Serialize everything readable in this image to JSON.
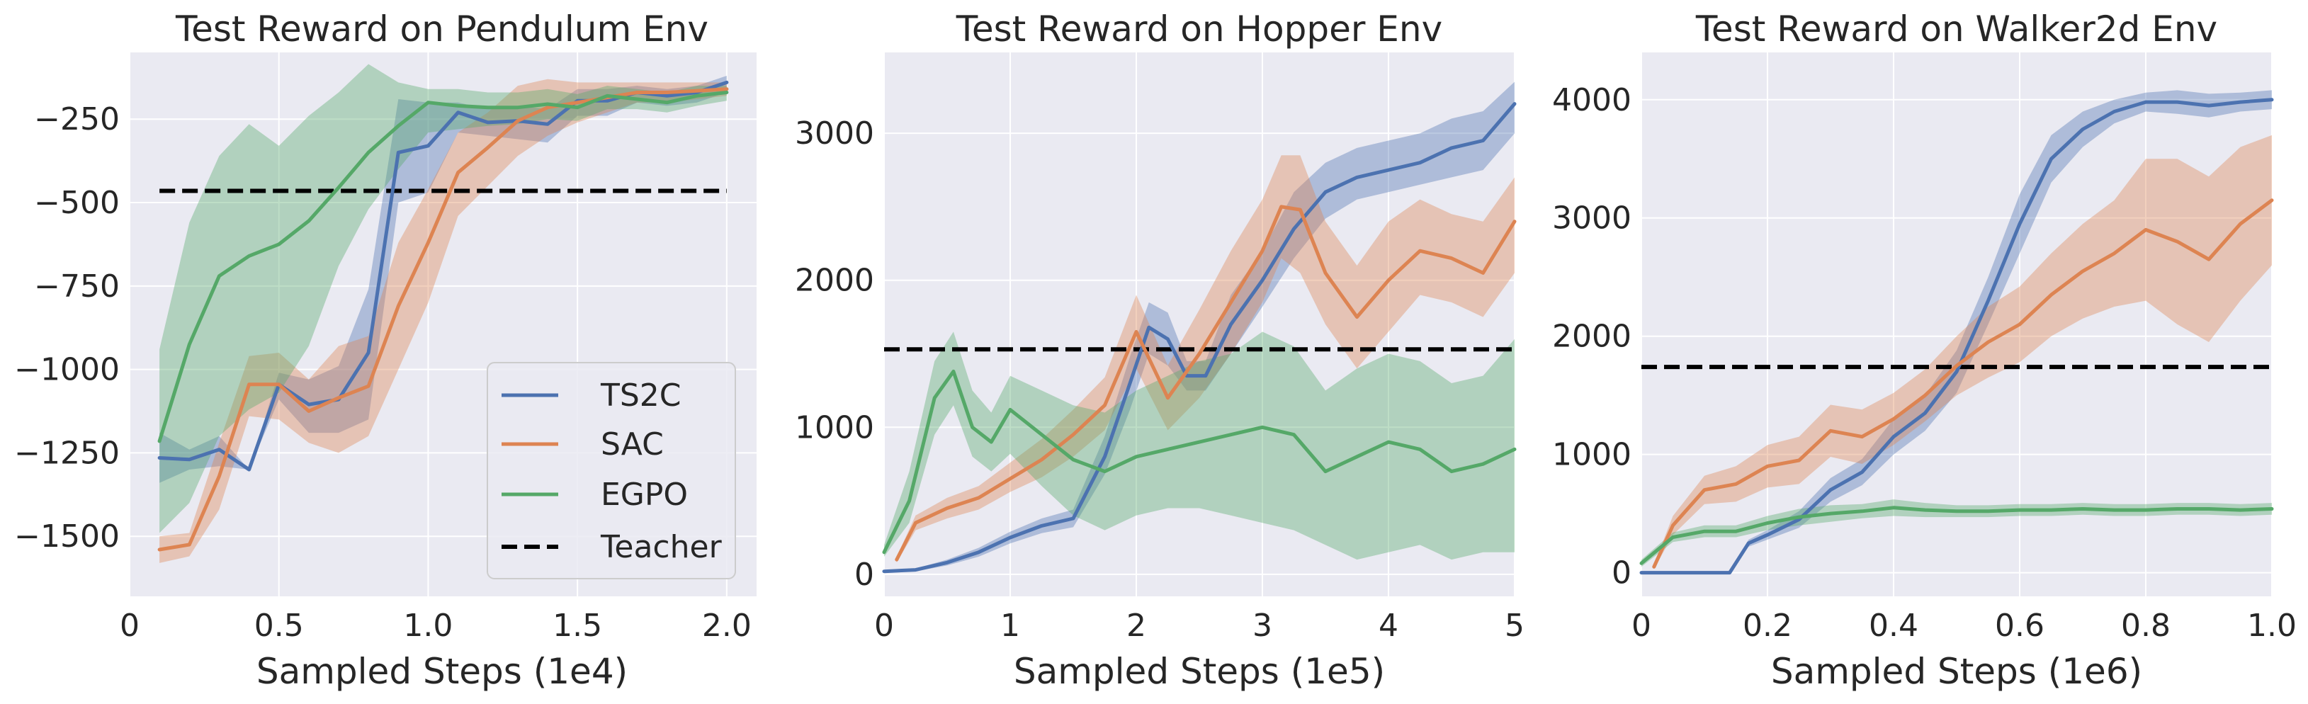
{
  "colors": {
    "TS2C": "#4c72b0",
    "SAC": "#dd8452",
    "EGPO": "#55a868",
    "Teacher": "#000000",
    "plot_bg": "#eaeaf2",
    "grid": "#ffffff"
  },
  "chart_data": [
    {
      "type": "line",
      "title": "Test Reward on Pendulum Env",
      "xlabel": "Sampled Steps (1e4)",
      "ylabel": "",
      "xlim": [
        0,
        2.1
      ],
      "ylim": [
        -1680,
        -50
      ],
      "xticks": [
        0,
        0.5,
        1.0,
        1.5,
        2.0
      ],
      "xtick_labels": [
        "0",
        "0.5",
        "1.0",
        "1.5",
        "2.0"
      ],
      "yticks": [
        -1500,
        -1250,
        -1000,
        -750,
        -500,
        -250
      ],
      "ytick_labels": [
        "−1500",
        "−1250",
        "−1000",
        "−750",
        "−500",
        "−250"
      ],
      "legend": {
        "placement": "lower-right",
        "entries": [
          "TS2C",
          "SAC",
          "EGPO",
          "Teacher"
        ]
      },
      "grid": true,
      "teacher": {
        "name": "Teacher",
        "y": -465,
        "x": [
          0.1,
          2.0
        ]
      },
      "series": [
        {
          "name": "TS2C",
          "x": [
            0.1,
            0.2,
            0.3,
            0.4,
            0.5,
            0.6,
            0.7,
            0.8,
            0.9,
            1.0,
            1.1,
            1.2,
            1.3,
            1.4,
            1.5,
            1.6,
            1.7,
            1.8,
            1.9,
            2.0
          ],
          "y": [
            -1265,
            -1270,
            -1240,
            -1300,
            -1045,
            -1105,
            -1090,
            -950,
            -350,
            -330,
            -230,
            -260,
            -255,
            -265,
            -195,
            -195,
            -170,
            -180,
            -170,
            -140
          ],
          "lower": [
            -1340,
            -1300,
            -1290,
            -1300,
            -1090,
            -1190,
            -1190,
            -1150,
            -500,
            -470,
            -290,
            -300,
            -310,
            -320,
            -240,
            -240,
            -200,
            -210,
            -200,
            -170
          ],
          "upper": [
            -1190,
            -1240,
            -1200,
            -1300,
            -1010,
            -1030,
            -990,
            -760,
            -190,
            -200,
            -200,
            -220,
            -210,
            -220,
            -160,
            -160,
            -150,
            -160,
            -150,
            -120
          ]
        },
        {
          "name": "SAC",
          "x": [
            0.1,
            0.2,
            0.3,
            0.4,
            0.5,
            0.6,
            0.7,
            0.8,
            0.9,
            1.0,
            1.1,
            1.2,
            1.3,
            1.4,
            1.5,
            1.6,
            1.7,
            1.8,
            1.9,
            2.0
          ],
          "y": [
            -1540,
            -1525,
            -1320,
            -1045,
            -1045,
            -1125,
            -1085,
            -1050,
            -810,
            -620,
            -410,
            -335,
            -255,
            -215,
            -200,
            -185,
            -170,
            -170,
            -165,
            -160
          ],
          "lower": [
            -1580,
            -1560,
            -1420,
            -1140,
            -1150,
            -1220,
            -1250,
            -1200,
            -1000,
            -800,
            -540,
            -450,
            -360,
            -300,
            -260,
            -230,
            -200,
            -200,
            -190,
            -180
          ],
          "upper": [
            -1500,
            -1490,
            -1220,
            -960,
            -950,
            -1030,
            -930,
            -900,
            -620,
            -460,
            -290,
            -230,
            -150,
            -130,
            -140,
            -140,
            -140,
            -140,
            -140,
            -140
          ]
        },
        {
          "name": "EGPO",
          "x": [
            0.1,
            0.2,
            0.3,
            0.4,
            0.5,
            0.6,
            0.7,
            0.8,
            0.9,
            1.0,
            1.1,
            1.2,
            1.3,
            1.4,
            1.5,
            1.6,
            1.7,
            1.8,
            1.9,
            2.0
          ],
          "y": [
            -1215,
            -925,
            -720,
            -660,
            -625,
            -555,
            -455,
            -350,
            -270,
            -200,
            -210,
            -215,
            -215,
            -205,
            -215,
            -180,
            -190,
            -200,
            -180,
            -170
          ],
          "lower": [
            -1490,
            -1400,
            -1200,
            -1120,
            -1070,
            -930,
            -690,
            -520,
            -400,
            -290,
            -280,
            -270,
            -265,
            -250,
            -255,
            -220,
            -220,
            -230,
            -210,
            -195
          ],
          "upper": [
            -940,
            -560,
            -360,
            -265,
            -330,
            -240,
            -170,
            -85,
            -140,
            -160,
            -160,
            -170,
            -170,
            -160,
            -175,
            -150,
            -160,
            -170,
            -150,
            -150
          ]
        }
      ]
    },
    {
      "type": "line",
      "title": "Test Reward on Hopper Env",
      "xlabel": "Sampled Steps (1e5)",
      "ylabel": "",
      "xlim": [
        0,
        5
      ],
      "ylim": [
        -150,
        3550
      ],
      "xticks": [
        0,
        1,
        2,
        3,
        4,
        5
      ],
      "xtick_labels": [
        "0",
        "1",
        "2",
        "3",
        "4",
        "5"
      ],
      "yticks": [
        0,
        1000,
        2000,
        3000
      ],
      "ytick_labels": [
        "0",
        "1000",
        "2000",
        "3000"
      ],
      "grid": true,
      "teacher": {
        "name": "Teacher",
        "y": 1530,
        "x": [
          0,
          5
        ]
      },
      "series": [
        {
          "name": "TS2C",
          "x": [
            0,
            0.25,
            0.5,
            0.75,
            1.0,
            1.25,
            1.5,
            1.75,
            1.95,
            2.1,
            2.25,
            2.4,
            2.55,
            2.75,
            3.0,
            3.25,
            3.5,
            3.75,
            4.0,
            4.25,
            4.5,
            4.75,
            5.0
          ],
          "y": [
            20,
            30,
            80,
            150,
            250,
            330,
            380,
            800,
            1300,
            1680,
            1600,
            1350,
            1350,
            1700,
            2000,
            2350,
            2600,
            2700,
            2750,
            2800,
            2900,
            2950,
            3200
          ],
          "lower": [
            10,
            20,
            60,
            120,
            210,
            280,
            320,
            680,
            1120,
            1500,
            1420,
            1250,
            1250,
            1500,
            1820,
            2150,
            2420,
            2550,
            2600,
            2650,
            2700,
            2750,
            3000
          ],
          "upper": [
            30,
            40,
            100,
            180,
            290,
            380,
            440,
            940,
            1480,
            1850,
            1780,
            1450,
            1450,
            1900,
            2200,
            2600,
            2800,
            2900,
            2950,
            3000,
            3100,
            3150,
            3350
          ]
        },
        {
          "name": "SAC",
          "x": [
            0.1,
            0.25,
            0.5,
            0.75,
            1.0,
            1.25,
            1.5,
            1.75,
            2.0,
            2.25,
            2.5,
            2.75,
            3.0,
            3.15,
            3.3,
            3.5,
            3.75,
            4.0,
            4.25,
            4.5,
            4.75,
            5.0
          ],
          "y": [
            100,
            350,
            450,
            520,
            650,
            780,
            950,
            1150,
            1650,
            1200,
            1500,
            1850,
            2200,
            2500,
            2480,
            2050,
            1750,
            2000,
            2200,
            2150,
            2050,
            2400
          ],
          "lower": [
            80,
            300,
            380,
            440,
            560,
            660,
            800,
            980,
            1400,
            980,
            1200,
            1500,
            1850,
            2150,
            2050,
            1700,
            1400,
            1650,
            1900,
            1850,
            1750,
            2050
          ],
          "upper": [
            120,
            400,
            520,
            600,
            760,
            920,
            1120,
            1340,
            1900,
            1420,
            1800,
            2200,
            2550,
            2850,
            2850,
            2400,
            2100,
            2400,
            2550,
            2450,
            2400,
            2700
          ]
        },
        {
          "name": "EGPO",
          "x": [
            0,
            0.2,
            0.4,
            0.55,
            0.7,
            0.85,
            1.0,
            1.25,
            1.5,
            1.75,
            2.0,
            2.25,
            2.5,
            2.75,
            3.0,
            3.25,
            3.5,
            3.75,
            4.0,
            4.25,
            4.5,
            4.75,
            5.0
          ],
          "y": [
            150,
            500,
            1200,
            1380,
            1000,
            900,
            1120,
            950,
            780,
            700,
            800,
            850,
            900,
            950,
            1000,
            950,
            700,
            800,
            900,
            850,
            700,
            750,
            850
          ],
          "lower": [
            120,
            350,
            950,
            1150,
            800,
            700,
            820,
            600,
            400,
            300,
            400,
            450,
            450,
            400,
            350,
            300,
            200,
            100,
            150,
            200,
            100,
            150,
            150
          ],
          "upper": [
            200,
            700,
            1450,
            1650,
            1250,
            1100,
            1350,
            1250,
            1150,
            1100,
            1250,
            1350,
            1450,
            1500,
            1650,
            1550,
            1250,
            1400,
            1500,
            1450,
            1300,
            1350,
            1600
          ]
        }
      ]
    },
    {
      "type": "line",
      "title": "Test Reward on Walker2d Env",
      "xlabel": "Sampled Steps (1e6)",
      "ylabel": "",
      "xlim": [
        0,
        1.0
      ],
      "ylim": [
        -200,
        4400
      ],
      "xticks": [
        0,
        0.2,
        0.4,
        0.6,
        0.8,
        1.0
      ],
      "xtick_labels": [
        "0",
        "0.2",
        "0.4",
        "0.6",
        "0.8",
        "1.0"
      ],
      "yticks": [
        0,
        1000,
        2000,
        3000,
        4000
      ],
      "ytick_labels": [
        "0",
        "1000",
        "2000",
        "3000",
        "4000"
      ],
      "grid": true,
      "teacher": {
        "name": "Teacher",
        "y": 1740,
        "x": [
          0,
          1.0
        ]
      },
      "series": [
        {
          "name": "TS2C",
          "x": [
            0,
            0.05,
            0.1,
            0.14,
            0.17,
            0.2,
            0.25,
            0.3,
            0.35,
            0.4,
            0.45,
            0.5,
            0.55,
            0.6,
            0.65,
            0.7,
            0.75,
            0.8,
            0.85,
            0.9,
            0.95,
            1.0
          ],
          "y": [
            0,
            0,
            0,
            0,
            250,
            320,
            450,
            700,
            850,
            1150,
            1350,
            1700,
            2300,
            2950,
            3500,
            3750,
            3900,
            3980,
            3980,
            3950,
            3980,
            4000
          ],
          "lower": [
            0,
            0,
            0,
            0,
            220,
            280,
            380,
            600,
            740,
            1000,
            1200,
            1520,
            2100,
            2700,
            3300,
            3600,
            3800,
            3900,
            3880,
            3850,
            3900,
            3920
          ],
          "upper": [
            0,
            0,
            0,
            0,
            280,
            360,
            520,
            800,
            960,
            1300,
            1500,
            1880,
            2500,
            3200,
            3700,
            3900,
            4000,
            4060,
            4080,
            4050,
            4060,
            4080
          ]
        },
        {
          "name": "SAC",
          "x": [
            0.02,
            0.05,
            0.1,
            0.15,
            0.2,
            0.25,
            0.3,
            0.35,
            0.4,
            0.45,
            0.5,
            0.55,
            0.6,
            0.65,
            0.7,
            0.75,
            0.8,
            0.85,
            0.9,
            0.95,
            1.0
          ],
          "y": [
            50,
            400,
            700,
            750,
            900,
            950,
            1200,
            1150,
            1300,
            1500,
            1750,
            1950,
            2100,
            2350,
            2550,
            2700,
            2900,
            2800,
            2650,
            2950,
            3150
          ],
          "lower": [
            30,
            320,
            580,
            600,
            720,
            750,
            980,
            920,
            1080,
            1280,
            1500,
            1650,
            1780,
            2000,
            2150,
            2250,
            2300,
            2100,
            1950,
            2300,
            2600
          ],
          "upper": [
            70,
            480,
            820,
            900,
            1080,
            1150,
            1420,
            1380,
            1520,
            1720,
            2000,
            2250,
            2420,
            2700,
            2950,
            3150,
            3500,
            3500,
            3350,
            3600,
            3700
          ]
        },
        {
          "name": "EGPO",
          "x": [
            0,
            0.05,
            0.1,
            0.15,
            0.2,
            0.25,
            0.3,
            0.35,
            0.4,
            0.45,
            0.5,
            0.55,
            0.6,
            0.65,
            0.7,
            0.75,
            0.8,
            0.85,
            0.9,
            0.95,
            1.0
          ],
          "y": [
            80,
            300,
            350,
            350,
            420,
            470,
            500,
            520,
            550,
            530,
            520,
            520,
            530,
            530,
            540,
            530,
            530,
            540,
            540,
            530,
            540
          ],
          "lower": [
            50,
            260,
            300,
            300,
            360,
            400,
            430,
            460,
            480,
            470,
            470,
            470,
            480,
            480,
            490,
            480,
            480,
            490,
            490,
            480,
            490
          ],
          "upper": [
            110,
            340,
            400,
            400,
            480,
            540,
            570,
            580,
            620,
            590,
            570,
            570,
            580,
            580,
            590,
            580,
            580,
            590,
            590,
            580,
            590
          ]
        }
      ]
    }
  ]
}
